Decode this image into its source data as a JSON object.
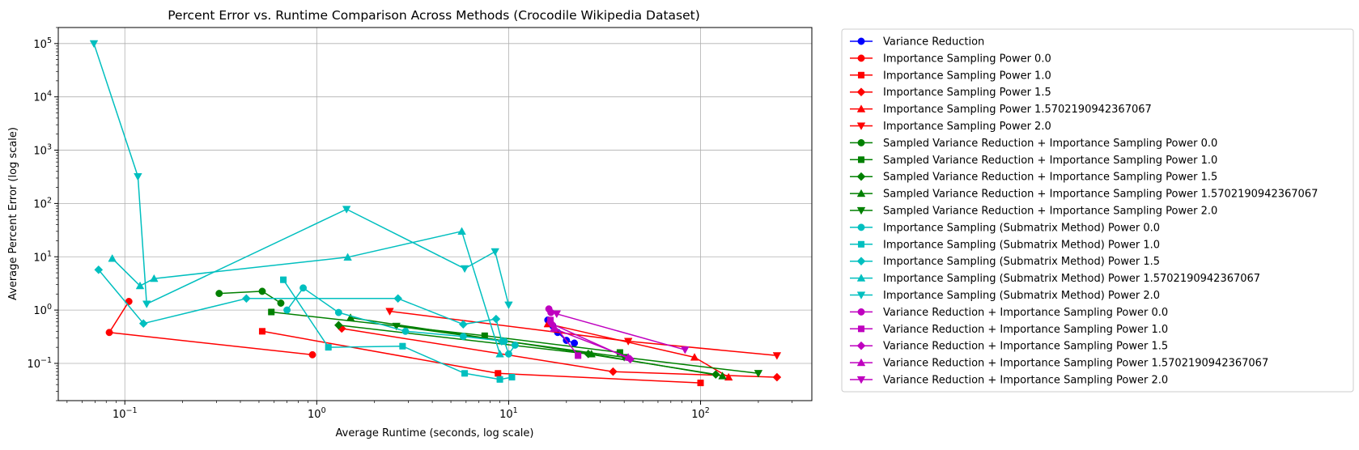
{
  "chart_data": {
    "type": "line",
    "title": "Percent Error vs. Runtime Comparison Across Methods (Crocodile Wikipedia Dataset)",
    "xlabel": "Average Runtime (seconds, log scale)",
    "ylabel": "Average Percent Error (log scale)",
    "xscale": "log",
    "yscale": "log",
    "xlim": [
      0.045,
      380
    ],
    "ylim": [
      0.02,
      200000
    ],
    "xticks": [
      {
        "value": 0.1,
        "base": "10",
        "exp": "−1"
      },
      {
        "value": 1,
        "base": "10",
        "exp": "0"
      },
      {
        "value": 10,
        "base": "10",
        "exp": "1"
      },
      {
        "value": 100,
        "base": "10",
        "exp": "2"
      }
    ],
    "yticks": [
      {
        "value": 0.1,
        "base": "10",
        "exp": "−1"
      },
      {
        "value": 1,
        "base": "10",
        "exp": "0"
      },
      {
        "value": 10,
        "base": "10",
        "exp": "1"
      },
      {
        "value": 100,
        "base": "10",
        "exp": "2"
      },
      {
        "value": 1000,
        "base": "10",
        "exp": "3"
      },
      {
        "value": 10000,
        "base": "10",
        "exp": "4"
      },
      {
        "value": 100000,
        "base": "10",
        "exp": "5"
      }
    ],
    "grid": true,
    "legend_position": "outside-right",
    "series": [
      {
        "name": "Variance Reduction",
        "color": "#0000ff",
        "marker": "circle",
        "points": [
          [
            16,
            0.65
          ],
          [
            17,
            0.5
          ],
          [
            18,
            0.38
          ],
          [
            20,
            0.27
          ],
          [
            22,
            0.24
          ]
        ]
      },
      {
        "name": "Importance Sampling Power 0.0",
        "color": "#ff0000",
        "marker": "circle",
        "points": [
          [
            0.105,
            1.45
          ],
          [
            0.083,
            0.38
          ],
          [
            0.95,
            0.145
          ]
        ]
      },
      {
        "name": "Importance Sampling Power 1.0",
        "color": "#ff0000",
        "marker": "square",
        "points": [
          [
            0.52,
            0.4
          ],
          [
            8.8,
            0.065
          ],
          [
            100,
            0.043
          ]
        ]
      },
      {
        "name": "Importance Sampling Power 1.5",
        "color": "#ff0000",
        "marker": "diamond",
        "points": [
          [
            1.35,
            0.45
          ],
          [
            35,
            0.07
          ],
          [
            250,
            0.055
          ]
        ]
      },
      {
        "name": "Importance Sampling Power 1.5702190942367067",
        "color": "#ff0000",
        "marker": "triangle-up",
        "points": [
          [
            16,
            0.55
          ],
          [
            93,
            0.13
          ],
          [
            140,
            0.055
          ]
        ]
      },
      {
        "name": "Importance Sampling Power 2.0",
        "color": "#ff0000",
        "marker": "triangle-down",
        "points": [
          [
            2.4,
            0.95
          ],
          [
            42,
            0.26
          ],
          [
            250,
            0.14
          ]
        ]
      },
      {
        "name": "Sampled Variance Reduction + Importance Sampling Power 0.0",
        "color": "#008000",
        "marker": "circle",
        "points": [
          [
            0.31,
            2.05
          ],
          [
            0.52,
            2.25
          ],
          [
            0.65,
            1.35
          ]
        ]
      },
      {
        "name": "Sampled Variance Reduction + Importance Sampling Power 1.0",
        "color": "#008000",
        "marker": "square",
        "points": [
          [
            0.58,
            0.92
          ],
          [
            7.5,
            0.33
          ],
          [
            38,
            0.16
          ]
        ]
      },
      {
        "name": "Sampled Variance Reduction + Importance Sampling Power 1.5",
        "color": "#008000",
        "marker": "diamond",
        "points": [
          [
            1.3,
            0.52
          ],
          [
            26,
            0.15
          ],
          [
            120,
            0.062
          ]
        ]
      },
      {
        "name": "Sampled Variance Reduction + Importance Sampling Power 1.5702190942367067",
        "color": "#008000",
        "marker": "triangle-up",
        "points": [
          [
            1.5,
            0.72
          ],
          [
            27,
            0.15
          ],
          [
            130,
            0.058
          ]
        ]
      },
      {
        "name": "Sampled Variance Reduction + Importance Sampling Power 2.0",
        "color": "#008000",
        "marker": "triangle-down",
        "points": [
          [
            2.6,
            0.5
          ],
          [
            40,
            0.13
          ],
          [
            200,
            0.065
          ]
        ]
      },
      {
        "name": "Importance Sampling (Submatrix Method) Power 0.0",
        "color": "#00bfbf",
        "marker": "circle",
        "points": [
          [
            0.7,
            1.0
          ],
          [
            0.85,
            2.6
          ],
          [
            1.3,
            0.9
          ],
          [
            2.9,
            0.4
          ],
          [
            5.8,
            0.32
          ],
          [
            9.5,
            0.26
          ],
          [
            10,
            0.15
          ],
          [
            10.8,
            0.22
          ]
        ]
      },
      {
        "name": "Importance Sampling (Submatrix Method) Power 1.0",
        "color": "#00bfbf",
        "marker": "square",
        "points": [
          [
            0.67,
            3.7
          ],
          [
            1.15,
            0.2
          ],
          [
            2.8,
            0.21
          ],
          [
            5.9,
            0.065
          ],
          [
            9,
            0.05
          ],
          [
            10.4,
            0.055
          ]
        ]
      },
      {
        "name": "Importance Sampling (Submatrix Method) Power 1.5",
        "color": "#00bfbf",
        "marker": "diamond",
        "points": [
          [
            0.073,
            5.7
          ],
          [
            0.125,
            0.56
          ],
          [
            0.43,
            1.65
          ],
          [
            2.65,
            1.65
          ],
          [
            5.8,
            0.54
          ],
          [
            8.6,
            0.68
          ],
          [
            9.2,
            0.26
          ]
        ]
      },
      {
        "name": "Importance Sampling (Submatrix Method) Power 1.5702190942367067",
        "color": "#00bfbf",
        "marker": "triangle-up",
        "points": [
          [
            0.086,
            9.3
          ],
          [
            0.12,
            2.85
          ],
          [
            0.142,
            3.9
          ],
          [
            1.45,
            9.8
          ],
          [
            5.7,
            30
          ],
          [
            9.0,
            0.15
          ]
        ]
      },
      {
        "name": "Importance Sampling (Submatrix Method) Power 2.0",
        "color": "#00bfbf",
        "marker": "triangle-down",
        "points": [
          [
            0.069,
            100000
          ],
          [
            0.117,
            320
          ],
          [
            0.13,
            1.3
          ],
          [
            1.43,
            78
          ],
          [
            5.9,
            6
          ],
          [
            8.5,
            12.5
          ],
          [
            10,
            1.25
          ]
        ]
      },
      {
        "name": "Variance Reduction + Importance Sampling Power 0.0",
        "color": "#bf00bf",
        "marker": "circle",
        "points": [
          [
            16.2,
            1.05
          ],
          [
            16.6,
            0.9
          ]
        ]
      },
      {
        "name": "Variance Reduction + Importance Sampling Power 1.0",
        "color": "#bf00bf",
        "marker": "square",
        "points": [
          [
            16.5,
            0.65
          ],
          [
            23,
            0.14
          ]
        ]
      },
      {
        "name": "Variance Reduction + Importance Sampling Power 1.5",
        "color": "#bf00bf",
        "marker": "diamond",
        "points": [
          [
            16.8,
            0.55
          ],
          [
            43,
            0.12
          ]
        ]
      },
      {
        "name": "Variance Reduction + Importance Sampling Power 1.5702190942367067",
        "color": "#bf00bf",
        "marker": "triangle-up",
        "points": [
          [
            17.2,
            0.45
          ],
          [
            42,
            0.13
          ]
        ]
      },
      {
        "name": "Variance Reduction + Importance Sampling Power 2.0",
        "color": "#bf00bf",
        "marker": "triangle-down",
        "points": [
          [
            17.8,
            0.85
          ],
          [
            83,
            0.18
          ]
        ]
      }
    ]
  }
}
